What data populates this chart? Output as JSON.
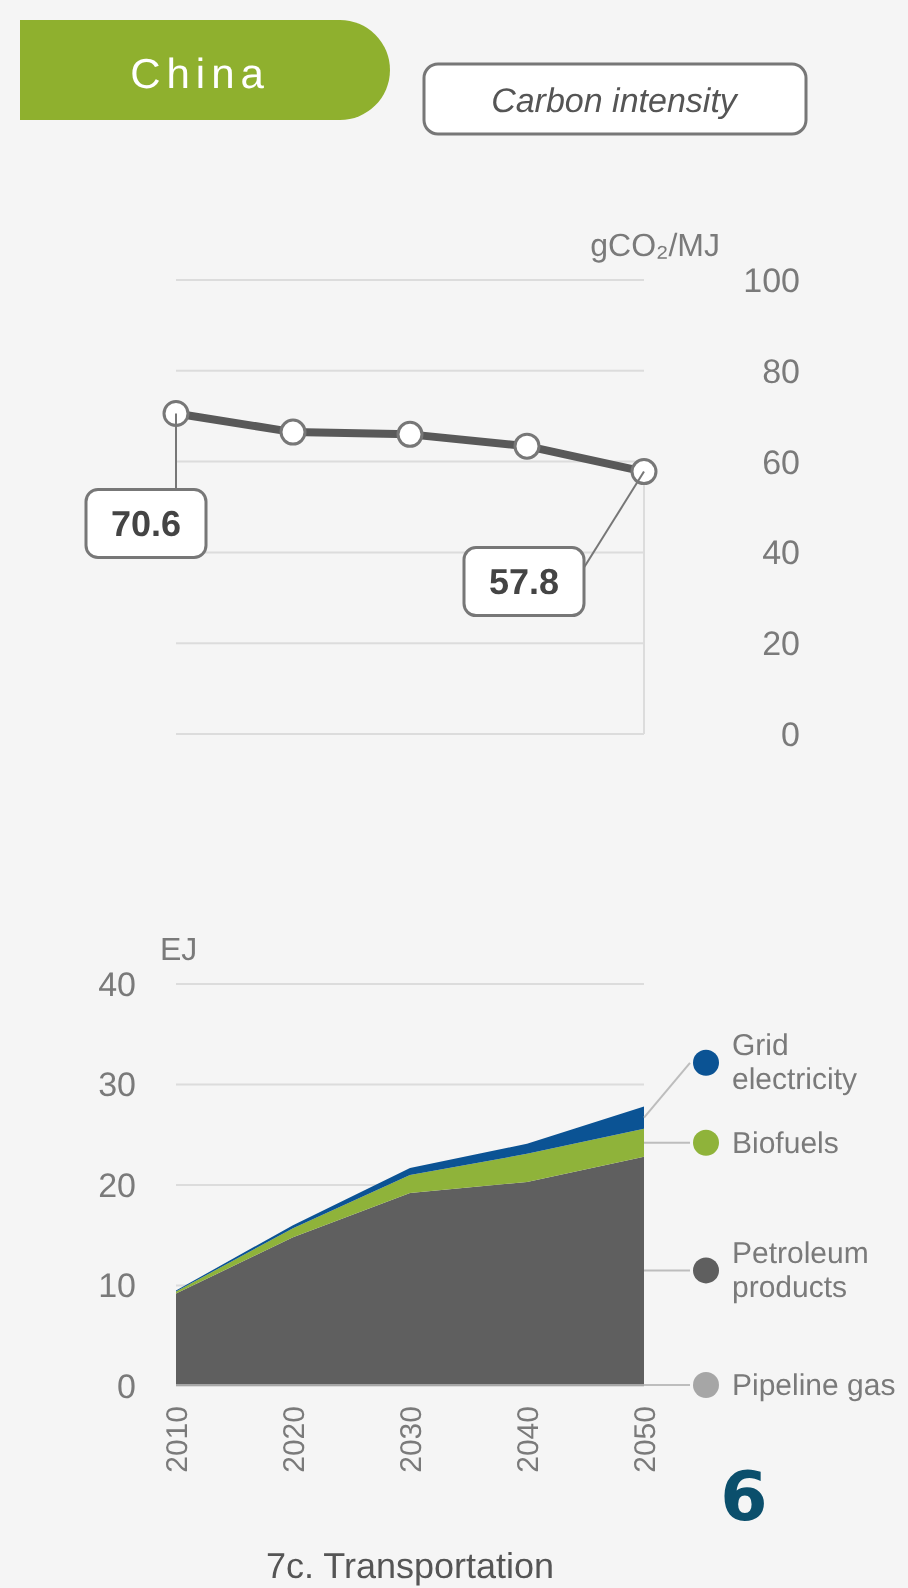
{
  "chart_data": [
    {
      "type": "line",
      "title": "Carbon intensity",
      "annotations": [
        "China",
        {
          "text": "70.6",
          "x": 2010,
          "y": 70.6
        },
        {
          "text": "57.8",
          "x": 2050,
          "y": 57.8
        }
      ],
      "ylabel": "gCO₂/MJ",
      "x": [
        2010,
        2020,
        2030,
        2040,
        2050
      ],
      "xlim": [
        2010,
        2050
      ],
      "tick_labels": "y",
      "series": [
        {
          "color": "#595959",
          "values": [
            70.6,
            66.5,
            66,
            63.4,
            57.8
          ]
        }
      ],
      "ylim": [
        0,
        100
      ],
      "yticks": [
        0,
        20,
        40,
        60,
        80,
        100
      ],
      "grid": "y",
      "marker": "circle"
    },
    {
      "type": "area",
      "stacked": true,
      "title": "7c. Transportation",
      "annotations": [
        "6"
      ],
      "ylabel": "EJ",
      "x": [
        2010,
        2020,
        2030,
        2040,
        2050
      ],
      "xlim": [
        2010,
        2050
      ],
      "xticks": [
        2010,
        2020,
        2030,
        2040,
        2050
      ],
      "series": [
        {
          "name": "Pipeline gas",
          "color": "#a6a6a6",
          "values": [
            0.2,
            0.2,
            0.2,
            0.2,
            0.2
          ]
        },
        {
          "name": "Petroleum products",
          "color": "#5f5f5f",
          "values": [
            9.0,
            14.6,
            19.0,
            20.1,
            22.6
          ]
        },
        {
          "name": "Biofuels",
          "color": "#8fb33a",
          "values": [
            0.2,
            0.9,
            1.8,
            2.8,
            2.8
          ]
        },
        {
          "name": "Grid electricity",
          "color": "#0b5394",
          "values": [
            0.1,
            0.3,
            0.7,
            1.0,
            2.2
          ]
        }
      ],
      "ylim": [
        0,
        40
      ],
      "yticks": [
        0,
        10,
        20,
        30,
        40
      ],
      "grid": "y",
      "legend": "right"
    }
  ]
}
